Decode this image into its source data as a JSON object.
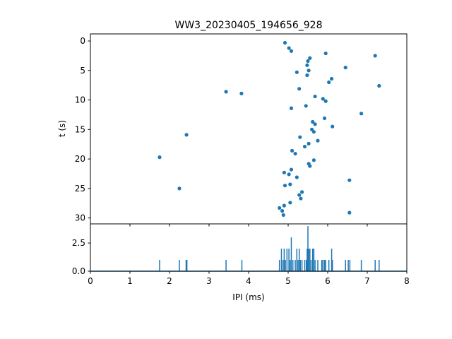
{
  "chart_data": [
    {
      "type": "scatter",
      "title": "WW3_20230405_194656_928",
      "xlabel": "",
      "ylabel": "t (s)",
      "xlim": [
        0,
        8
      ],
      "ylim": [
        31,
        -1.2
      ],
      "y_inverted": true,
      "yticks": [
        0,
        5,
        10,
        15,
        20,
        25,
        30
      ],
      "x_ticklabels_shown": false,
      "color": "#1f77b4",
      "points": [
        {
          "x": 4.92,
          "y": 0.3
        },
        {
          "x": 5.02,
          "y": 1.2
        },
        {
          "x": 5.08,
          "y": 1.7
        },
        {
          "x": 5.55,
          "y": 2.9
        },
        {
          "x": 5.5,
          "y": 3.4
        },
        {
          "x": 5.48,
          "y": 4.1
        },
        {
          "x": 5.52,
          "y": 5.0
        },
        {
          "x": 5.48,
          "y": 5.8
        },
        {
          "x": 5.22,
          "y": 5.3
        },
        {
          "x": 5.95,
          "y": 2.1
        },
        {
          "x": 7.2,
          "y": 2.5
        },
        {
          "x": 6.45,
          "y": 4.5
        },
        {
          "x": 6.1,
          "y": 6.4
        },
        {
          "x": 6.03,
          "y": 7.0
        },
        {
          "x": 7.3,
          "y": 7.6
        },
        {
          "x": 5.28,
          "y": 8.1
        },
        {
          "x": 3.43,
          "y": 8.6
        },
        {
          "x": 3.82,
          "y": 8.9
        },
        {
          "x": 5.68,
          "y": 9.4
        },
        {
          "x": 5.88,
          "y": 9.8
        },
        {
          "x": 5.95,
          "y": 10.2
        },
        {
          "x": 5.45,
          "y": 11.0
        },
        {
          "x": 5.08,
          "y": 11.4
        },
        {
          "x": 6.85,
          "y": 12.3
        },
        {
          "x": 5.92,
          "y": 13.1
        },
        {
          "x": 5.62,
          "y": 13.7
        },
        {
          "x": 5.68,
          "y": 14.1
        },
        {
          "x": 6.12,
          "y": 14.5
        },
        {
          "x": 5.6,
          "y": 15.0
        },
        {
          "x": 5.65,
          "y": 15.4
        },
        {
          "x": 2.43,
          "y": 15.9
        },
        {
          "x": 5.3,
          "y": 16.3
        },
        {
          "x": 5.75,
          "y": 16.9
        },
        {
          "x": 5.52,
          "y": 17.4
        },
        {
          "x": 5.42,
          "y": 17.9
        },
        {
          "x": 5.1,
          "y": 18.6
        },
        {
          "x": 5.18,
          "y": 19.1
        },
        {
          "x": 1.75,
          "y": 19.7
        },
        {
          "x": 5.65,
          "y": 20.2
        },
        {
          "x": 5.52,
          "y": 20.8
        },
        {
          "x": 5.55,
          "y": 21.2
        },
        {
          "x": 5.08,
          "y": 21.8
        },
        {
          "x": 4.9,
          "y": 22.3
        },
        {
          "x": 5.02,
          "y": 22.6
        },
        {
          "x": 5.22,
          "y": 23.1
        },
        {
          "x": 6.55,
          "y": 23.6
        },
        {
          "x": 4.92,
          "y": 24.5
        },
        {
          "x": 5.05,
          "y": 24.3
        },
        {
          "x": 2.25,
          "y": 25.0
        },
        {
          "x": 5.35,
          "y": 25.6
        },
        {
          "x": 5.28,
          "y": 26.1
        },
        {
          "x": 5.32,
          "y": 26.7
        },
        {
          "x": 5.05,
          "y": 27.4
        },
        {
          "x": 4.9,
          "y": 27.9
        },
        {
          "x": 4.78,
          "y": 28.3
        },
        {
          "x": 4.85,
          "y": 28.8
        },
        {
          "x": 4.88,
          "y": 29.5
        },
        {
          "x": 6.55,
          "y": 29.1
        }
      ]
    },
    {
      "type": "line",
      "title": "",
      "xlabel": "IPI (ms)",
      "ylabel": "",
      "xlim": [
        0,
        8
      ],
      "ylim": [
        0,
        4.2
      ],
      "xticks": [
        0,
        1,
        2,
        3,
        4,
        5,
        6,
        7,
        8
      ],
      "yticks": [
        0.0,
        2.5
      ],
      "ytick_labels": [
        "0.0",
        "2.5"
      ],
      "color": "#1f77b4",
      "spikes": [
        {
          "x": 1.75,
          "y": 1
        },
        {
          "x": 2.25,
          "y": 1
        },
        {
          "x": 2.42,
          "y": 1
        },
        {
          "x": 2.44,
          "y": 1
        },
        {
          "x": 3.43,
          "y": 1
        },
        {
          "x": 3.83,
          "y": 1
        },
        {
          "x": 4.78,
          "y": 1
        },
        {
          "x": 4.83,
          "y": 2
        },
        {
          "x": 4.87,
          "y": 1
        },
        {
          "x": 4.9,
          "y": 2
        },
        {
          "x": 4.93,
          "y": 1
        },
        {
          "x": 4.97,
          "y": 2
        },
        {
          "x": 5.02,
          "y": 2
        },
        {
          "x": 5.05,
          "y": 1
        },
        {
          "x": 5.08,
          "y": 3
        },
        {
          "x": 5.12,
          "y": 1
        },
        {
          "x": 5.18,
          "y": 1
        },
        {
          "x": 5.22,
          "y": 2
        },
        {
          "x": 5.25,
          "y": 1
        },
        {
          "x": 5.28,
          "y": 2
        },
        {
          "x": 5.31,
          "y": 1
        },
        {
          "x": 5.35,
          "y": 1
        },
        {
          "x": 5.42,
          "y": 1
        },
        {
          "x": 5.46,
          "y": 1
        },
        {
          "x": 5.48,
          "y": 2
        },
        {
          "x": 5.5,
          "y": 4
        },
        {
          "x": 5.52,
          "y": 2
        },
        {
          "x": 5.55,
          "y": 2
        },
        {
          "x": 5.58,
          "y": 1
        },
        {
          "x": 5.62,
          "y": 2
        },
        {
          "x": 5.65,
          "y": 2
        },
        {
          "x": 5.68,
          "y": 1
        },
        {
          "x": 5.75,
          "y": 1
        },
        {
          "x": 5.85,
          "y": 1
        },
        {
          "x": 5.88,
          "y": 1
        },
        {
          "x": 5.92,
          "y": 1
        },
        {
          "x": 5.95,
          "y": 1
        },
        {
          "x": 6.03,
          "y": 1
        },
        {
          "x": 6.1,
          "y": 2
        },
        {
          "x": 6.12,
          "y": 1
        },
        {
          "x": 6.45,
          "y": 1
        },
        {
          "x": 6.52,
          "y": 1
        },
        {
          "x": 6.56,
          "y": 1
        },
        {
          "x": 6.85,
          "y": 1
        },
        {
          "x": 7.2,
          "y": 1
        },
        {
          "x": 7.3,
          "y": 1
        }
      ]
    }
  ]
}
